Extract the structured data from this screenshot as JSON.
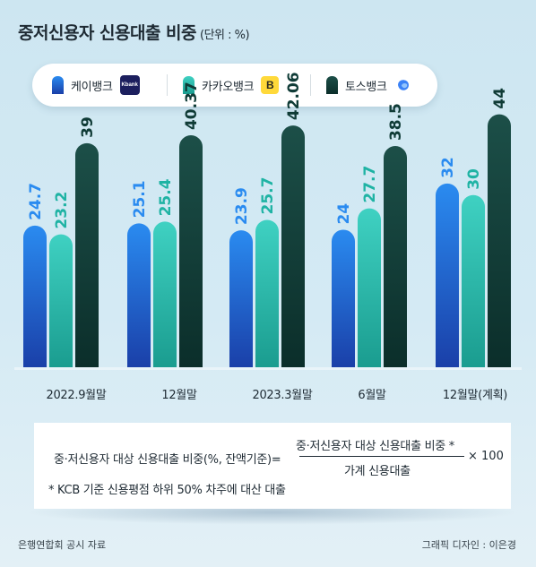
{
  "title": "중저신용자 신용대출 비중",
  "unit": "(단위 : %)",
  "legend": [
    {
      "name": "케이뱅크",
      "logo_text": "Kbank",
      "color": "#1e6fe0"
    },
    {
      "name": "카카오뱅크",
      "logo_text": "B",
      "color": "#23b8a8"
    },
    {
      "name": "토스뱅크",
      "logo_text": "",
      "color": "#0e3f3a"
    }
  ],
  "chart_data": {
    "type": "bar",
    "categories": [
      "2022.9월말",
      "12월말",
      "2023.3월말",
      "6월말",
      "12월말(계획)"
    ],
    "series": [
      {
        "name": "케이뱅크",
        "values": [
          24.7,
          25.1,
          23.9,
          24,
          32
        ],
        "labels": [
          "24.7",
          "25.1",
          "23.9",
          "24",
          "32"
        ]
      },
      {
        "name": "카카오뱅크",
        "values": [
          23.2,
          25.4,
          25.7,
          27.7,
          30
        ],
        "labels": [
          "23.2",
          "25.4",
          "25.7",
          "27.7",
          "30"
        ]
      },
      {
        "name": "토스뱅크",
        "values": [
          39,
          40.37,
          42.06,
          38.5,
          44
        ],
        "labels": [
          "39",
          "40.37",
          "42.06",
          "38.5",
          "44"
        ]
      }
    ],
    "colors": {
      "kbank": [
        "#2a8bf0",
        "#1a3fa8"
      ],
      "kakao": [
        "#3fd1c2",
        "#1a9c8f"
      ],
      "toss": [
        "#1c4f48",
        "#0b2e2a"
      ],
      "kbank_label": "#2a8bf0",
      "kakao_label": "#1fb3a4",
      "toss_label": "#0f3b36"
    },
    "ylim": [
      0,
      50
    ],
    "grid": false,
    "legend_position": "top"
  },
  "formula": {
    "left": "중·저신용자 대상 신용대출 비중(%, 잔액기준)=",
    "numerator": "중·저신용자 대상 신용대출 비중 *",
    "denominator": "가계 신용대출",
    "times": "× 100",
    "note": "* KCB 기준 신용평점 하위 50% 차주에 대산 대출"
  },
  "source": "은행연합회 공시 자료",
  "credit": "그래픽 디자인 : 이은경"
}
